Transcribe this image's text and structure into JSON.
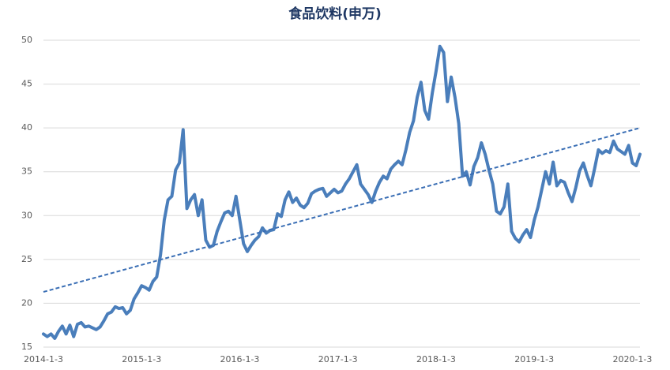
{
  "chart_data": {
    "type": "line",
    "title": "食品饮料(申万)",
    "categories": [
      "2014-1-3",
      null,
      null,
      null,
      null,
      null,
      null,
      null,
      null,
      null,
      null,
      null,
      null,
      null,
      null,
      null,
      null,
      null,
      null,
      null,
      null,
      null,
      null,
      null,
      null,
      null,
      "2015-1-3",
      null,
      null,
      null,
      null,
      null,
      null,
      null,
      null,
      null,
      null,
      null,
      null,
      null,
      null,
      null,
      null,
      null,
      null,
      null,
      null,
      null,
      null,
      null,
      null,
      null,
      "2016-1-3",
      null,
      null,
      null,
      null,
      null,
      null,
      null,
      null,
      null,
      null,
      null,
      null,
      null,
      null,
      null,
      null,
      null,
      null,
      null,
      null,
      null,
      null,
      null,
      null,
      null,
      "2017-1-3",
      null,
      null,
      null,
      null,
      null,
      null,
      null,
      null,
      null,
      null,
      null,
      null,
      null,
      null,
      null,
      null,
      null,
      null,
      null,
      null,
      null,
      null,
      null,
      null,
      null,
      "2018-1-3",
      null,
      null,
      null,
      null,
      null,
      null,
      null,
      null,
      null,
      null,
      null,
      null,
      null,
      null,
      null,
      null,
      null,
      null,
      null,
      null,
      null,
      null,
      null,
      null,
      null,
      "2019-1-3",
      null,
      null,
      null,
      null,
      null,
      null,
      null,
      null,
      null,
      null,
      null,
      null,
      null,
      null,
      null,
      null,
      null,
      null,
      null,
      null,
      null,
      null,
      null,
      null,
      null,
      "2020-1-3",
      null,
      null
    ],
    "series": [
      {
        "color": "#4a7ebb",
        "values": [
          16.5,
          16.2,
          16.5,
          16.0,
          16.8,
          17.4,
          16.5,
          17.5,
          16.2,
          17.6,
          17.8,
          17.3,
          17.4,
          17.2,
          17.0,
          17.3,
          18.0,
          18.8,
          19.0,
          19.6,
          19.4,
          19.5,
          18.8,
          19.2,
          20.5,
          21.2,
          22.0,
          21.8,
          21.5,
          22.5,
          23.0,
          25.5,
          29.5,
          31.8,
          32.2,
          35.2,
          36.0,
          39.8,
          30.8,
          31.8,
          32.4,
          30.0,
          31.8,
          27.2,
          26.4,
          26.6,
          28.2,
          29.3,
          30.3,
          30.5,
          30.0,
          32.2,
          29.5,
          26.8,
          25.9,
          26.6,
          27.2,
          27.6,
          28.6,
          28.0,
          28.3,
          28.4,
          30.2,
          29.9,
          31.8,
          32.7,
          31.5,
          32.0,
          31.2,
          30.9,
          31.4,
          32.5,
          32.8,
          33.0,
          33.1,
          32.2,
          32.6,
          33.0,
          32.6,
          32.8,
          33.6,
          34.2,
          35.0,
          35.8,
          33.6,
          33.0,
          32.4,
          31.5,
          32.8,
          33.8,
          34.5,
          34.2,
          35.3,
          35.8,
          36.2,
          35.8,
          37.5,
          39.5,
          40.8,
          43.5,
          45.2,
          42.0,
          41.0,
          44.0,
          46.5,
          49.3,
          48.6,
          43.0,
          45.8,
          43.5,
          40.5,
          34.5,
          35.0,
          33.5,
          35.6,
          36.6,
          38.3,
          37.0,
          35.2,
          33.6,
          30.5,
          30.2,
          31.0,
          33.6,
          28.2,
          27.4,
          27.0,
          27.8,
          28.4,
          27.5,
          29.5,
          31.0,
          33.0,
          35.0,
          33.6,
          36.1,
          33.4,
          34.0,
          33.8,
          32.6,
          31.6,
          33.2,
          35.1,
          36.0,
          34.6,
          33.4,
          35.4,
          37.5,
          37.1,
          37.4,
          37.2,
          38.5,
          37.6,
          37.3,
          37.0,
          38.0,
          36.0,
          35.7,
          37.0
        ]
      }
    ],
    "trendline": {
      "color": "#3b6fb5",
      "values": [
        21.3,
        40.0
      ]
    },
    "ylim": [
      15,
      50
    ],
    "yticks": [
      15,
      20,
      25,
      30,
      35,
      40,
      45,
      50
    ],
    "grid": true
  }
}
